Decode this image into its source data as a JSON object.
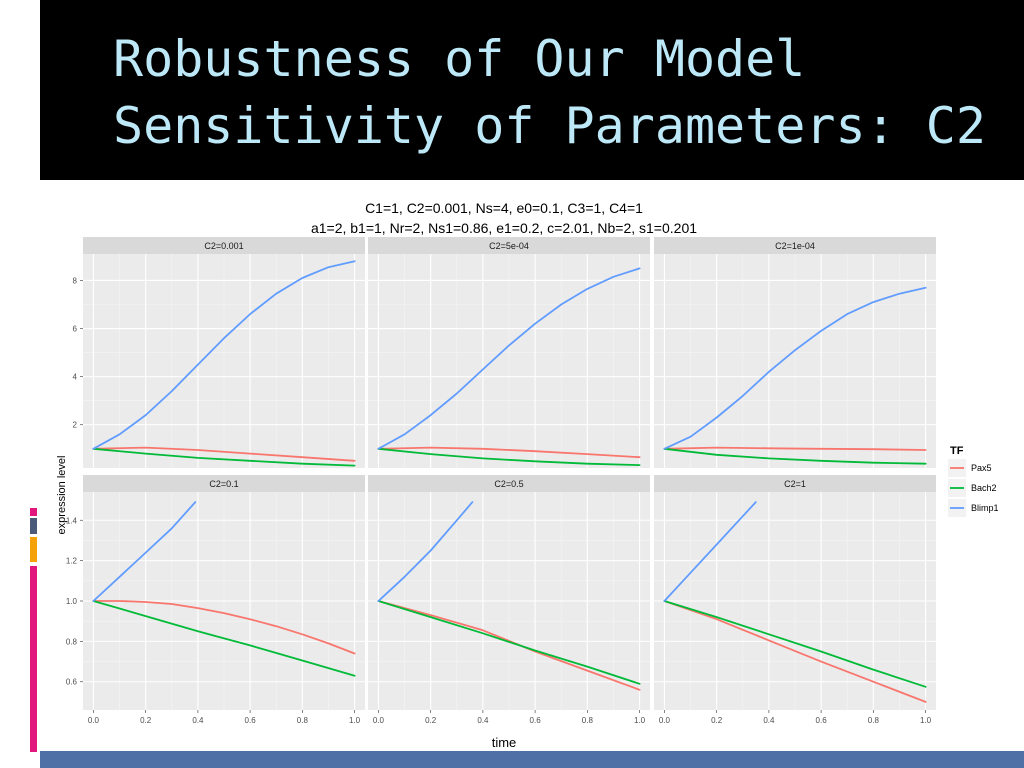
{
  "slide": {
    "title_line_1": "Robustness of Our Model",
    "title_line_2": "Sensitivity of Parameters: C2",
    "title_color": "#bde8f7",
    "title_bar_color": "#000000",
    "bottom_band_color": "#4f6fa7"
  },
  "chart_data": {
    "type": "line",
    "title_line_1": "C1=1, C2=0.001, Ns=4, e0=0.1, C3=1, C4=1",
    "title_line_2": "a1=2, b1=1, Nr=2, Ns1=0.86, e1=0.2, c=2.01, Nb=2, s1=0.201",
    "xlabel": "time",
    "ylabel": "expression level",
    "legend": {
      "title": "TF",
      "placement": "right",
      "entries": [
        {
          "name": "Pax5",
          "color": "#f8766d"
        },
        {
          "name": "Bach2",
          "color": "#00ba38"
        },
        {
          "name": "Blimp1",
          "color": "#619cff"
        }
      ]
    },
    "grid": true,
    "x_ticks": [
      "0.0",
      "0.2",
      "0.4",
      "0.6",
      "0.8",
      "1.0"
    ],
    "xlim": [
      -0.04,
      1.04
    ],
    "rows": [
      {
        "ylim": [
          0.2,
          9.1
        ],
        "y_ticks": [
          2,
          4,
          6,
          8
        ],
        "y_tick_labels": [
          "2",
          "4",
          "6",
          "8"
        ]
      },
      {
        "ylim": [
          0.46,
          1.54
        ],
        "y_ticks": [
          0.6,
          0.8,
          1.0,
          1.2,
          1.4
        ],
        "y_tick_labels": [
          "0.6",
          "0.8",
          "1.0",
          "1.2",
          "1.4"
        ]
      }
    ],
    "panels": [
      {
        "label": "C2=0.001",
        "row": 0,
        "series": [
          {
            "name": "Pax5",
            "x": [
              0,
              0.2,
              0.4,
              0.6,
              0.8,
              1.0
            ],
            "y": [
              1.0,
              1.05,
              0.95,
              0.8,
              0.65,
              0.5
            ]
          },
          {
            "name": "Bach2",
            "x": [
              0,
              0.2,
              0.4,
              0.6,
              0.8,
              1.0
            ],
            "y": [
              1.0,
              0.8,
              0.62,
              0.5,
              0.38,
              0.3
            ]
          },
          {
            "name": "Blimp1",
            "x": [
              0,
              0.1,
              0.2,
              0.3,
              0.4,
              0.5,
              0.6,
              0.7,
              0.8,
              0.9,
              1.0
            ],
            "y": [
              1.0,
              1.6,
              2.4,
              3.4,
              4.5,
              5.6,
              6.6,
              7.45,
              8.1,
              8.55,
              8.8
            ]
          }
        ]
      },
      {
        "label": "C2=5e-04",
        "row": 0,
        "series": [
          {
            "name": "Pax5",
            "x": [
              0,
              0.2,
              0.4,
              0.6,
              0.8,
              1.0
            ],
            "y": [
              1.0,
              1.05,
              1.0,
              0.9,
              0.78,
              0.65
            ]
          },
          {
            "name": "Bach2",
            "x": [
              0,
              0.2,
              0.4,
              0.6,
              0.8,
              1.0
            ],
            "y": [
              1.0,
              0.78,
              0.6,
              0.48,
              0.38,
              0.32
            ]
          },
          {
            "name": "Blimp1",
            "x": [
              0,
              0.1,
              0.2,
              0.3,
              0.4,
              0.5,
              0.6,
              0.7,
              0.8,
              0.9,
              1.0
            ],
            "y": [
              1.0,
              1.6,
              2.4,
              3.3,
              4.3,
              5.3,
              6.2,
              7.0,
              7.65,
              8.15,
              8.5
            ]
          }
        ]
      },
      {
        "label": "C2=1e-04",
        "row": 0,
        "series": [
          {
            "name": "Pax5",
            "x": [
              0,
              0.2,
              0.4,
              0.6,
              0.8,
              1.0
            ],
            "y": [
              1.0,
              1.05,
              1.02,
              1.0,
              0.98,
              0.95
            ]
          },
          {
            "name": "Bach2",
            "x": [
              0,
              0.2,
              0.4,
              0.6,
              0.8,
              1.0
            ],
            "y": [
              1.0,
              0.75,
              0.6,
              0.5,
              0.42,
              0.38
            ]
          },
          {
            "name": "Blimp1",
            "x": [
              0,
              0.1,
              0.2,
              0.3,
              0.4,
              0.5,
              0.6,
              0.7,
              0.8,
              0.9,
              1.0
            ],
            "y": [
              1.0,
              1.5,
              2.3,
              3.2,
              4.2,
              5.1,
              5.9,
              6.6,
              7.1,
              7.45,
              7.7
            ]
          }
        ]
      },
      {
        "label": "C2=0.1",
        "row": 1,
        "series": [
          {
            "name": "Pax5",
            "x": [
              0,
              0.1,
              0.2,
              0.3,
              0.4,
              0.5,
              0.6,
              0.7,
              0.8,
              0.9,
              1.0
            ],
            "y": [
              1.0,
              1.0,
              0.995,
              0.985,
              0.965,
              0.94,
              0.91,
              0.875,
              0.835,
              0.79,
              0.74
            ]
          },
          {
            "name": "Bach2",
            "x": [
              0,
              0.2,
              0.4,
              0.6,
              0.8,
              1.0
            ],
            "y": [
              1.0,
              0.925,
              0.85,
              0.78,
              0.705,
              0.63
            ]
          },
          {
            "name": "Blimp1",
            "x": [
              0,
              0.1,
              0.2,
              0.3,
              0.39
            ],
            "y": [
              1.0,
              1.12,
              1.24,
              1.36,
              1.49
            ]
          }
        ]
      },
      {
        "label": "C2=0.5",
        "row": 1,
        "series": [
          {
            "name": "Pax5",
            "x": [
              0,
              0.2,
              0.4,
              0.6,
              0.8,
              1.0
            ],
            "y": [
              1.0,
              0.93,
              0.855,
              0.75,
              0.655,
              0.56
            ]
          },
          {
            "name": "Bach2",
            "x": [
              0,
              0.2,
              0.4,
              0.6,
              0.8,
              1.0
            ],
            "y": [
              1.0,
              0.92,
              0.84,
              0.755,
              0.675,
              0.59
            ]
          },
          {
            "name": "Blimp1",
            "x": [
              0,
              0.1,
              0.2,
              0.3,
              0.36
            ],
            "y": [
              1.0,
              1.12,
              1.25,
              1.4,
              1.49
            ]
          }
        ]
      },
      {
        "label": "C2=1",
        "row": 1,
        "series": [
          {
            "name": "Pax5",
            "x": [
              0,
              0.2,
              0.4,
              0.6,
              0.8,
              1.0
            ],
            "y": [
              1.0,
              0.91,
              0.805,
              0.7,
              0.6,
              0.5
            ]
          },
          {
            "name": "Bach2",
            "x": [
              0,
              0.2,
              0.4,
              0.6,
              0.8,
              1.0
            ],
            "y": [
              1.0,
              0.92,
              0.835,
              0.75,
              0.66,
              0.575
            ]
          },
          {
            "name": "Blimp1",
            "x": [
              0,
              0.1,
              0.2,
              0.3,
              0.35
            ],
            "y": [
              1.0,
              1.14,
              1.28,
              1.42,
              1.49
            ]
          }
        ]
      }
    ]
  }
}
